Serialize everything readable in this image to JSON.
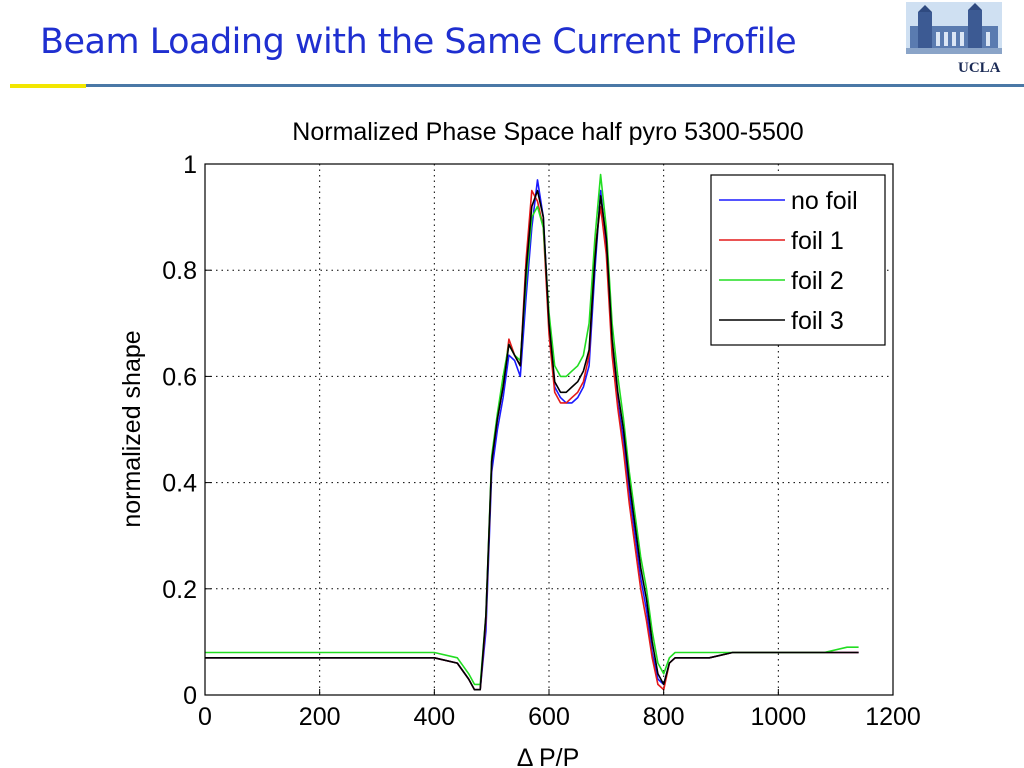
{
  "slide": {
    "title": "Beam Loading with the Same Current Profile",
    "logo_text": "UCLA",
    "logo_icon": "royce-hall-icon"
  },
  "colors": {
    "title": "#1f2fd0",
    "rule_yellow": "#f2e600",
    "rule_blue": "#4a78a6"
  },
  "chart_data": {
    "type": "line",
    "title": "Normalized Phase Space half pyro 5300-5500",
    "xlabel": "Δ P/P",
    "ylabel": "normalized shape",
    "xlim": [
      0,
      1200
    ],
    "ylim": [
      0,
      1
    ],
    "xticks": [
      0,
      200,
      400,
      600,
      800,
      1000,
      1200
    ],
    "yticks": [
      0,
      0.2,
      0.4,
      0.6,
      0.8,
      1
    ],
    "ytick_labels": [
      "0",
      "0.2",
      "0.4",
      "0.6",
      "0.8",
      "1"
    ],
    "grid": true,
    "legend_position": "top-right",
    "series": [
      {
        "name": "no foil",
        "color": "#1a1aff",
        "x": [
          0,
          40,
          80,
          120,
          160,
          200,
          240,
          280,
          320,
          360,
          400,
          440,
          460,
          470,
          480,
          490,
          500,
          510,
          520,
          530,
          540,
          550,
          560,
          570,
          580,
          590,
          600,
          610,
          620,
          630,
          640,
          650,
          660,
          670,
          680,
          690,
          700,
          710,
          720,
          730,
          740,
          750,
          760,
          770,
          780,
          790,
          800,
          810,
          820,
          840,
          880,
          920,
          960,
          1000,
          1040,
          1080,
          1120,
          1140
        ],
        "y": [
          0.07,
          0.07,
          0.07,
          0.07,
          0.07,
          0.07,
          0.07,
          0.07,
          0.07,
          0.07,
          0.07,
          0.06,
          0.03,
          0.01,
          0.01,
          0.12,
          0.42,
          0.5,
          0.56,
          0.64,
          0.63,
          0.6,
          0.75,
          0.88,
          0.97,
          0.9,
          0.7,
          0.58,
          0.56,
          0.55,
          0.55,
          0.56,
          0.58,
          0.62,
          0.8,
          0.95,
          0.85,
          0.65,
          0.55,
          0.48,
          0.38,
          0.3,
          0.22,
          0.16,
          0.08,
          0.03,
          0.02,
          0.06,
          0.07,
          0.07,
          0.07,
          0.08,
          0.08,
          0.08,
          0.08,
          0.08,
          0.08,
          0.08
        ]
      },
      {
        "name": "foil 1",
        "color": "#e31a1a",
        "x": [
          0,
          40,
          80,
          120,
          160,
          200,
          240,
          280,
          320,
          360,
          400,
          440,
          460,
          470,
          480,
          490,
          500,
          510,
          520,
          530,
          540,
          550,
          560,
          570,
          580,
          590,
          600,
          610,
          620,
          630,
          640,
          650,
          660,
          670,
          680,
          690,
          700,
          710,
          720,
          730,
          740,
          750,
          760,
          770,
          780,
          790,
          800,
          810,
          820,
          840,
          880,
          920,
          960,
          1000,
          1040,
          1080,
          1120,
          1140
        ],
        "y": [
          0.07,
          0.07,
          0.07,
          0.07,
          0.07,
          0.07,
          0.07,
          0.07,
          0.07,
          0.07,
          0.07,
          0.06,
          0.03,
          0.01,
          0.01,
          0.14,
          0.44,
          0.52,
          0.58,
          0.67,
          0.64,
          0.62,
          0.82,
          0.95,
          0.93,
          0.88,
          0.68,
          0.57,
          0.55,
          0.55,
          0.56,
          0.57,
          0.59,
          0.64,
          0.84,
          0.92,
          0.83,
          0.64,
          0.54,
          0.46,
          0.36,
          0.28,
          0.2,
          0.14,
          0.07,
          0.02,
          0.01,
          0.06,
          0.07,
          0.07,
          0.07,
          0.08,
          0.08,
          0.08,
          0.08,
          0.08,
          0.08,
          0.08
        ]
      },
      {
        "name": "foil 2",
        "color": "#22dd22",
        "x": [
          0,
          40,
          80,
          120,
          160,
          200,
          240,
          280,
          320,
          360,
          400,
          440,
          460,
          470,
          480,
          490,
          500,
          510,
          520,
          530,
          540,
          550,
          560,
          570,
          580,
          590,
          600,
          610,
          620,
          630,
          640,
          650,
          660,
          670,
          680,
          690,
          700,
          710,
          720,
          730,
          740,
          750,
          760,
          770,
          780,
          790,
          800,
          810,
          820,
          840,
          880,
          920,
          960,
          1000,
          1040,
          1080,
          1120,
          1140
        ],
        "y": [
          0.08,
          0.08,
          0.08,
          0.08,
          0.08,
          0.08,
          0.08,
          0.08,
          0.08,
          0.08,
          0.08,
          0.07,
          0.04,
          0.02,
          0.02,
          0.15,
          0.45,
          0.53,
          0.6,
          0.66,
          0.64,
          0.63,
          0.78,
          0.9,
          0.92,
          0.88,
          0.72,
          0.62,
          0.6,
          0.6,
          0.61,
          0.62,
          0.64,
          0.7,
          0.86,
          0.98,
          0.88,
          0.7,
          0.6,
          0.52,
          0.42,
          0.34,
          0.26,
          0.2,
          0.12,
          0.06,
          0.04,
          0.07,
          0.08,
          0.08,
          0.08,
          0.08,
          0.08,
          0.08,
          0.08,
          0.08,
          0.09,
          0.09
        ]
      },
      {
        "name": "foil 3",
        "color": "#000000",
        "x": [
          0,
          40,
          80,
          120,
          160,
          200,
          240,
          280,
          320,
          360,
          400,
          440,
          460,
          470,
          480,
          490,
          500,
          510,
          520,
          530,
          540,
          550,
          560,
          570,
          580,
          590,
          600,
          610,
          620,
          630,
          640,
          650,
          660,
          670,
          680,
          690,
          700,
          710,
          720,
          730,
          740,
          750,
          760,
          770,
          780,
          790,
          800,
          810,
          820,
          840,
          880,
          920,
          960,
          1000,
          1040,
          1080,
          1120,
          1140
        ],
        "y": [
          0.07,
          0.07,
          0.07,
          0.07,
          0.07,
          0.07,
          0.07,
          0.07,
          0.07,
          0.07,
          0.07,
          0.06,
          0.03,
          0.01,
          0.01,
          0.15,
          0.44,
          0.52,
          0.58,
          0.66,
          0.64,
          0.62,
          0.8,
          0.92,
          0.95,
          0.9,
          0.7,
          0.59,
          0.57,
          0.57,
          0.58,
          0.59,
          0.61,
          0.65,
          0.82,
          0.94,
          0.86,
          0.67,
          0.57,
          0.5,
          0.4,
          0.32,
          0.24,
          0.18,
          0.1,
          0.04,
          0.02,
          0.06,
          0.07,
          0.07,
          0.07,
          0.08,
          0.08,
          0.08,
          0.08,
          0.08,
          0.08,
          0.08
        ]
      }
    ]
  }
}
